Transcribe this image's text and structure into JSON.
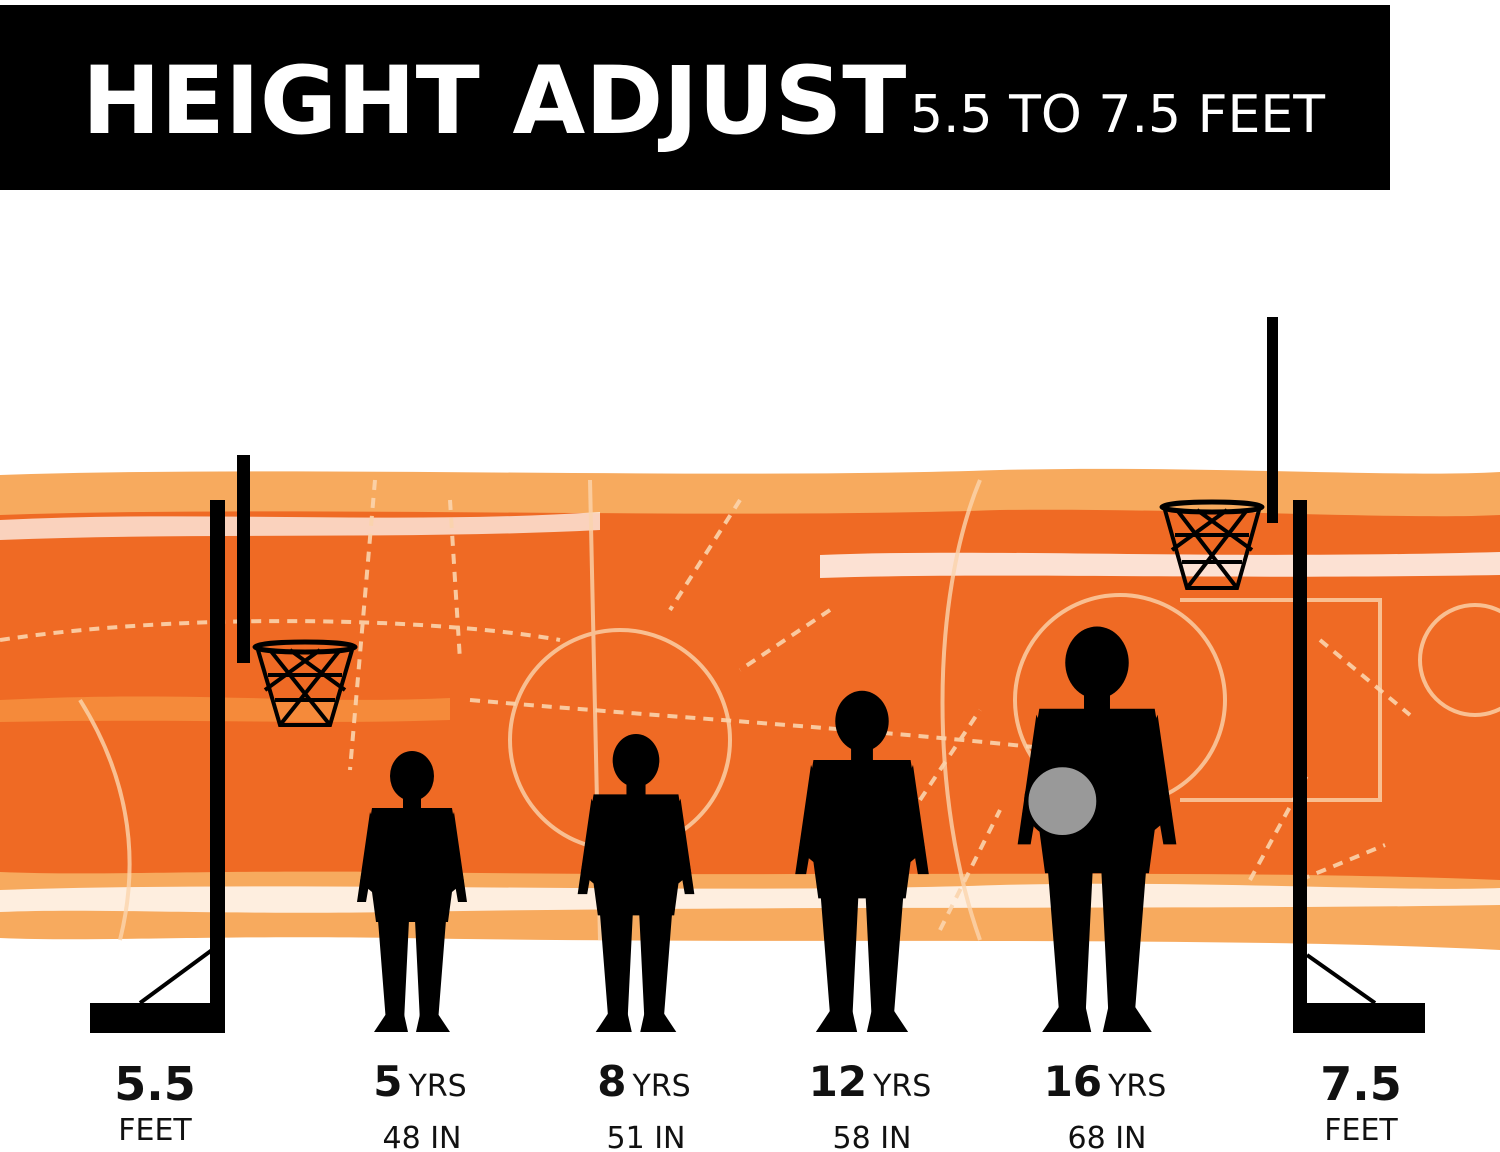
{
  "header": {
    "title": "HEIGHT ADJUST",
    "subtitle": "5.5 TO 7.5 FEET"
  },
  "hoops": [
    {
      "value": "5.5",
      "unit": "FEET"
    },
    {
      "value": "7.5",
      "unit": "FEET"
    }
  ],
  "people": [
    {
      "age": "5",
      "unit": "YRS",
      "height": "48 IN"
    },
    {
      "age": "8",
      "unit": "YRS",
      "height": "51 IN"
    },
    {
      "age": "12",
      "unit": "YRS",
      "height": "58 IN"
    },
    {
      "age": "16",
      "unit": "YRS",
      "height": "68 IN"
    }
  ]
}
